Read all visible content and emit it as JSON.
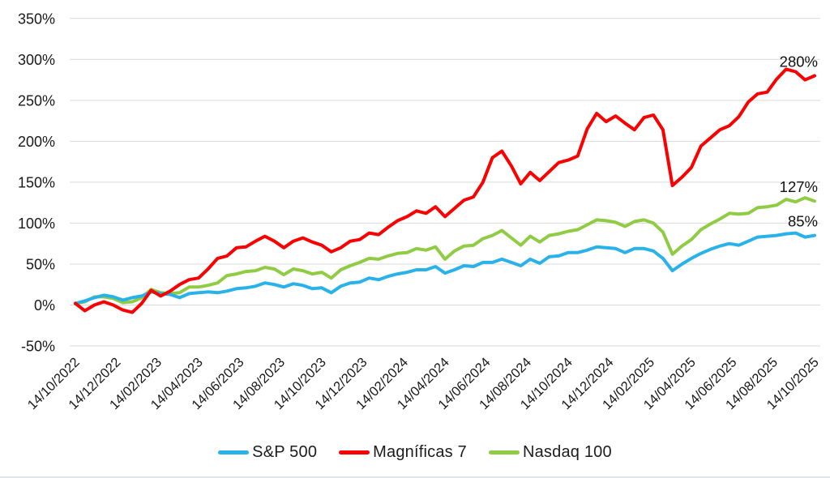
{
  "chart_data": {
    "type": "line",
    "title": "",
    "unit": "%",
    "grid": true,
    "legend_position": "bottom",
    "y_axis": {
      "tick_labels": [
        "350%",
        "300%",
        "250%",
        "200%",
        "150%",
        "100%",
        "50%",
        "0%",
        "-50%"
      ],
      "tick_values": [
        350,
        300,
        250,
        200,
        150,
        100,
        50,
        0,
        -50
      ],
      "min": -50,
      "max": 350
    },
    "x_axis": {
      "tick_labels": [
        "14/10/2022",
        "14/12/2022",
        "14/02/2023",
        "14/04/2023",
        "14/06/2023",
        "14/08/2023",
        "14/10/2023",
        "14/12/2023",
        "14/02/2024",
        "14/04/2024",
        "14/06/2024",
        "14/08/2024",
        "14/10/2024",
        "14/12/2024",
        "14/02/2025",
        "14/04/2025",
        "14/06/2025",
        "14/08/2025",
        "14/10/2025"
      ],
      "first": "14/10/2022",
      "last": "14/10/2025",
      "tick_interval": "2 months",
      "label_rotation_deg": -45
    },
    "sampling_note": "cumulative return %, weekly series sampled every 2 weeks (week 0 to 156)",
    "week_step": 2,
    "weeks_total": 156,
    "series": [
      {
        "name": "S&P 500",
        "color": "#29b2e9",
        "end_label": "85%",
        "final_value": 85,
        "values": [
          2,
          5,
          9,
          12,
          10,
          6,
          9,
          11,
          16,
          14,
          13,
          9,
          14,
          15,
          16,
          15,
          17,
          20,
          21,
          23,
          27,
          25,
          22,
          26,
          24,
          20,
          21,
          15,
          23,
          27,
          28,
          33,
          31,
          35,
          38,
          40,
          43,
          43,
          47,
          39,
          43,
          48,
          47,
          52,
          52,
          56,
          52,
          48,
          56,
          51,
          59,
          60,
          64,
          64,
          67,
          71,
          70,
          69,
          64,
          69,
          69,
          66,
          57,
          42,
          50,
          57,
          63,
          68,
          72,
          75,
          73,
          78,
          83,
          84,
          85,
          87,
          88,
          83,
          85
        ]
      },
      {
        "name": "Magníficas 7",
        "color": "#fa0000",
        "end_label": "280%",
        "final_value": 280,
        "values": [
          2,
          -7,
          0,
          4,
          0,
          -6,
          -9,
          2,
          18,
          11,
          17,
          25,
          31,
          33,
          44,
          57,
          60,
          70,
          71,
          78,
          84,
          78,
          70,
          78,
          82,
          77,
          73,
          65,
          70,
          78,
          80,
          88,
          86,
          95,
          103,
          108,
          115,
          112,
          120,
          108,
          118,
          128,
          132,
          150,
          180,
          188,
          170,
          148,
          162,
          152,
          163,
          174,
          177,
          182,
          215,
          234,
          224,
          231,
          222,
          214,
          229,
          232,
          214,
          146,
          156,
          168,
          194,
          204,
          214,
          219,
          230,
          248,
          258,
          260,
          276,
          288,
          285,
          275,
          280
        ]
      },
      {
        "name": "Nasdaq 100",
        "color": "#8fcc44",
        "end_label": "127%",
        "final_value": 127,
        "values": [
          2,
          4,
          10,
          10,
          8,
          3,
          4,
          9,
          19,
          15,
          14,
          15,
          22,
          22,
          24,
          27,
          36,
          38,
          41,
          42,
          46,
          44,
          37,
          44,
          42,
          38,
          40,
          33,
          43,
          48,
          52,
          57,
          56,
          60,
          63,
          64,
          69,
          67,
          71,
          56,
          66,
          72,
          73,
          81,
          85,
          91,
          82,
          73,
          84,
          77,
          85,
          87,
          90,
          92,
          98,
          104,
          103,
          101,
          96,
          102,
          104,
          100,
          89,
          62,
          72,
          80,
          92,
          99,
          105,
          112,
          111,
          112,
          119,
          120,
          122,
          129,
          126,
          131,
          127
        ]
      }
    ]
  },
  "legend": {
    "items": [
      {
        "label": "S&P 500"
      },
      {
        "label": "Magníficas 7"
      },
      {
        "label": "Nasdaq 100"
      }
    ]
  },
  "annotations": [
    {
      "text": "280%",
      "series": "Magníficas 7"
    },
    {
      "text": "127%",
      "series": "Nasdaq 100"
    },
    {
      "text": "85%",
      "series": "S&P 500"
    }
  ]
}
